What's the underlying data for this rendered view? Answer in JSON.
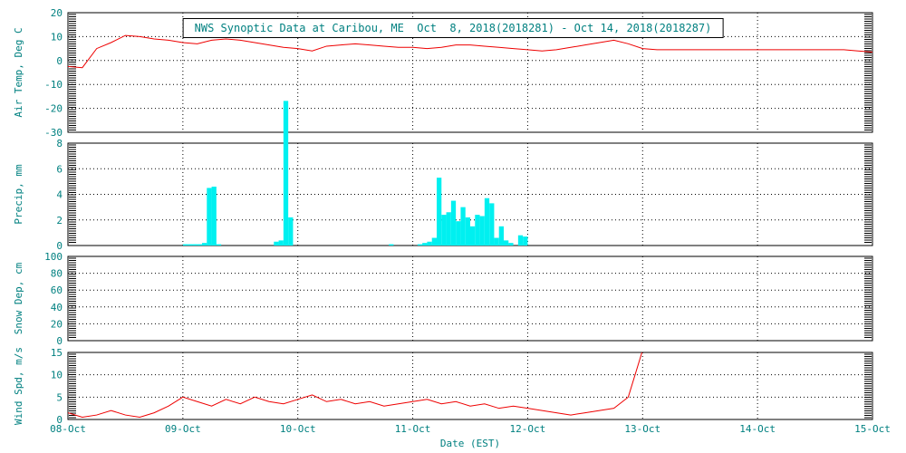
{
  "page": {
    "background": "#ffffff"
  },
  "chart_data": {
    "type": "line",
    "title": "NWS Synoptic Data at Caribou, ME  Oct  8, 2018(2018281) - Oct 14, 2018(2018287)",
    "xlabel": "Date (EST)",
    "x_ticks": [
      "08-Oct",
      "09-Oct",
      "10-Oct",
      "11-Oct",
      "12-Oct",
      "13-Oct",
      "14-Oct",
      "15-Oct"
    ],
    "hours_total": 168,
    "grid": true,
    "legend": "none",
    "colors": {
      "text": "#008080",
      "line": "#ee0000",
      "bar": "#00f0f0",
      "frame": "#000000"
    },
    "panels": [
      {
        "name": "air-temp",
        "ylabel": "Air Temp, Deg C",
        "ylim": [
          -30,
          20
        ],
        "yticks": [
          -30,
          -20,
          -10,
          0,
          10,
          20
        ],
        "series_type": "line",
        "x_start_hour": 0,
        "x_step_hours": 3,
        "values": [
          -2.5,
          -3,
          5,
          7.5,
          10.5,
          10,
          9,
          8.5,
          7.5,
          7,
          8.5,
          9,
          8.5,
          7.5,
          6.5,
          5.5,
          5,
          4,
          6,
          6.5,
          7,
          6.5,
          6,
          5.5,
          5.5,
          5,
          5.5,
          6.5,
          6.5,
          6,
          5.5,
          5,
          4.5,
          4,
          4.5,
          5.5,
          6.5,
          7.5,
          8.5,
          7,
          5,
          4.5,
          4.5,
          4.5,
          4.5,
          4.5,
          4.5,
          4.5,
          4.5,
          4.5,
          4.5,
          4.5,
          4.5,
          4.5,
          4.5,
          4,
          3.5
        ]
      },
      {
        "name": "precip",
        "ylabel": "Precip, mm",
        "ylim": [
          0,
          8
        ],
        "yticks": [
          0,
          2,
          4,
          6,
          8
        ],
        "series_type": "bar",
        "bars": [
          {
            "t": 24,
            "v": 0.1
          },
          {
            "t": 25,
            "v": 0.1
          },
          {
            "t": 26,
            "v": 0.1
          },
          {
            "t": 27,
            "v": 0.1
          },
          {
            "t": 28,
            "v": 0.2
          },
          {
            "t": 29,
            "v": 4.5
          },
          {
            "t": 30,
            "v": 4.6
          },
          {
            "t": 31,
            "v": 0.1
          },
          {
            "t": 43,
            "v": 0.3
          },
          {
            "t": 44,
            "v": 0.4
          },
          {
            "t": 45,
            "v": 11.3
          },
          {
            "t": 46,
            "v": 2.2
          },
          {
            "t": 67,
            "v": 0.1
          },
          {
            "t": 73,
            "v": 0.1
          },
          {
            "t": 74,
            "v": 0.2
          },
          {
            "t": 75,
            "v": 0.3
          },
          {
            "t": 76,
            "v": 0.6
          },
          {
            "t": 77,
            "v": 5.3
          },
          {
            "t": 78,
            "v": 2.4
          },
          {
            "t": 79,
            "v": 2.6
          },
          {
            "t": 80,
            "v": 3.5
          },
          {
            "t": 81,
            "v": 1.9
          },
          {
            "t": 82,
            "v": 3.0
          },
          {
            "t": 83,
            "v": 2.2
          },
          {
            "t": 84,
            "v": 1.5
          },
          {
            "t": 85,
            "v": 2.4
          },
          {
            "t": 86,
            "v": 2.3
          },
          {
            "t": 87,
            "v": 3.7
          },
          {
            "t": 88,
            "v": 3.3
          },
          {
            "t": 89,
            "v": 0.6
          },
          {
            "t": 90,
            "v": 1.5
          },
          {
            "t": 91,
            "v": 0.4
          },
          {
            "t": 92,
            "v": 0.2
          },
          {
            "t": 94,
            "v": 0.8
          },
          {
            "t": 95,
            "v": 0.7
          }
        ]
      },
      {
        "name": "snow-depth",
        "ylabel": "Snow Dep, cm",
        "ylim": [
          0,
          100
        ],
        "yticks": [
          0,
          20,
          40,
          60,
          80,
          100
        ],
        "series_type": "line",
        "x_start_hour": 0,
        "x_step_hours": 3,
        "values": []
      },
      {
        "name": "wind-speed",
        "ylabel": "Wind Spd, m/s",
        "ylim": [
          0,
          15
        ],
        "yticks": [
          0,
          5,
          10,
          15
        ],
        "series_type": "line",
        "x_start_hour": 0,
        "x_step_hours": 3,
        "values": [
          1.5,
          0.5,
          1,
          2,
          1,
          0.5,
          1.5,
          3,
          5,
          4,
          3,
          4.5,
          3.5,
          5,
          4,
          3.5,
          4.5,
          5.5,
          4,
          4.5,
          3.5,
          4,
          3,
          3.5,
          4,
          4.5,
          3.5,
          4,
          3,
          3.5,
          2.5,
          3,
          2.5,
          2,
          1.5,
          1,
          1.5,
          2,
          2.5,
          5,
          15.5
        ]
      }
    ]
  }
}
